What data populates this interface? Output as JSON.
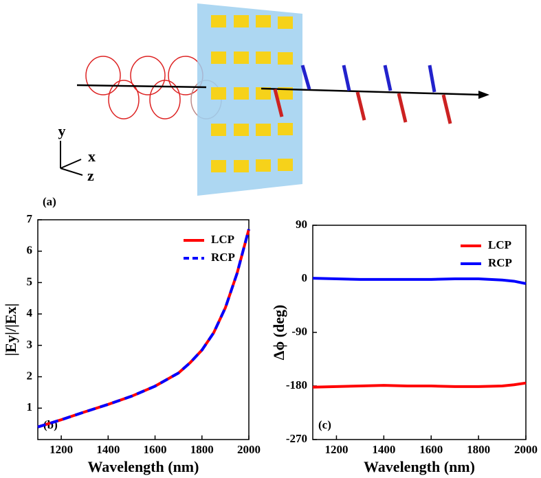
{
  "diagram": {
    "label": "(a)",
    "axis_x": "x",
    "axis_y": "y",
    "axis_z": "z"
  },
  "chart_data": [
    {
      "type": "line",
      "panel_label": "(b)",
      "xlabel": "Wavelength (nm)",
      "ylabel": "|Ey|/|Ex|",
      "x": [
        1100,
        1200,
        1300,
        1400,
        1500,
        1600,
        1700,
        1750,
        1800,
        1850,
        1900,
        1950,
        2000
      ],
      "series": [
        {
          "name": "LCP",
          "color": "#ff0000",
          "dash": false,
          "values": [
            0.4,
            0.63,
            0.88,
            1.12,
            1.38,
            1.7,
            2.12,
            2.45,
            2.85,
            3.4,
            4.2,
            5.3,
            6.7
          ]
        },
        {
          "name": "RCP",
          "color": "#0000ff",
          "dash": true,
          "values": [
            0.4,
            0.63,
            0.88,
            1.12,
            1.38,
            1.7,
            2.12,
            2.45,
            2.85,
            3.4,
            4.2,
            5.3,
            6.7
          ]
        }
      ],
      "xlim": [
        1100,
        2000
      ],
      "xticks": [
        1200,
        1400,
        1600,
        1800,
        2000
      ],
      "ylim": [
        0,
        7
      ],
      "yticks": [
        1,
        2,
        3,
        4,
        5,
        6,
        7
      ],
      "legend": "upper-right"
    },
    {
      "type": "line",
      "panel_label": "(c)",
      "xlabel": "Wavelength (nm)",
      "ylabel": "Δϕ (deg)",
      "x": [
        1100,
        1200,
        1300,
        1400,
        1500,
        1600,
        1700,
        1800,
        1900,
        1950,
        2000
      ],
      "series": [
        {
          "name": "LCP",
          "color": "#ff0000",
          "dash": false,
          "values": [
            -182,
            -181,
            -180,
            -179,
            -180,
            -180,
            -181,
            -181,
            -180,
            -178,
            -175
          ]
        },
        {
          "name": "RCP",
          "color": "#0000ff",
          "dash": false,
          "values": [
            1,
            0,
            -1,
            -1,
            -1,
            -1,
            0,
            0,
            -2,
            -4,
            -8
          ]
        }
      ],
      "xlim": [
        1100,
        2000
      ],
      "xticks": [
        1200,
        1400,
        1600,
        1800,
        2000
      ],
      "ylim": [
        -270,
        90
      ],
      "yticks": [
        -270,
        -180,
        -90,
        0,
        90
      ],
      "legend": "upper-right"
    }
  ]
}
